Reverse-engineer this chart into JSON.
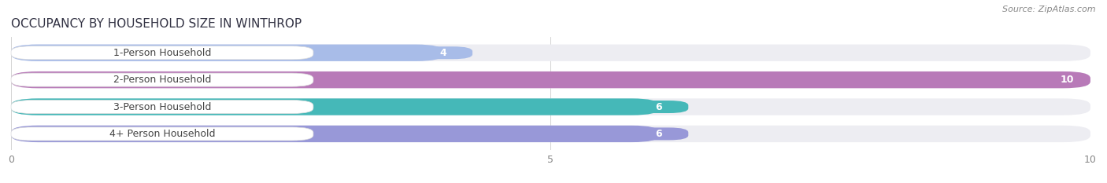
{
  "title": "OCCUPANCY BY HOUSEHOLD SIZE IN WINTHROP",
  "source": "Source: ZipAtlas.com",
  "categories": [
    "1-Person Household",
    "2-Person Household",
    "3-Person Household",
    "4+ Person Household"
  ],
  "values": [
    4,
    10,
    6,
    6
  ],
  "bar_colors": [
    "#a8bce8",
    "#b87ab8",
    "#45b8b8",
    "#9898d8"
  ],
  "bar_bg_color": "#ededf2",
  "xlim": [
    0,
    10
  ],
  "xticks": [
    0,
    5,
    10
  ],
  "label_box_color": "#ffffff",
  "label_text_color": "#444444",
  "value_label_colors_inside": [
    "#555555",
    "#ffffff",
    "#ffffff",
    "#ffffff"
  ],
  "title_fontsize": 11,
  "source_fontsize": 8,
  "tick_fontsize": 9,
  "bar_label_fontsize": 9,
  "category_fontsize": 9,
  "fig_bg_color": "#ffffff",
  "bar_height": 0.62,
  "bar_gap": 0.38
}
